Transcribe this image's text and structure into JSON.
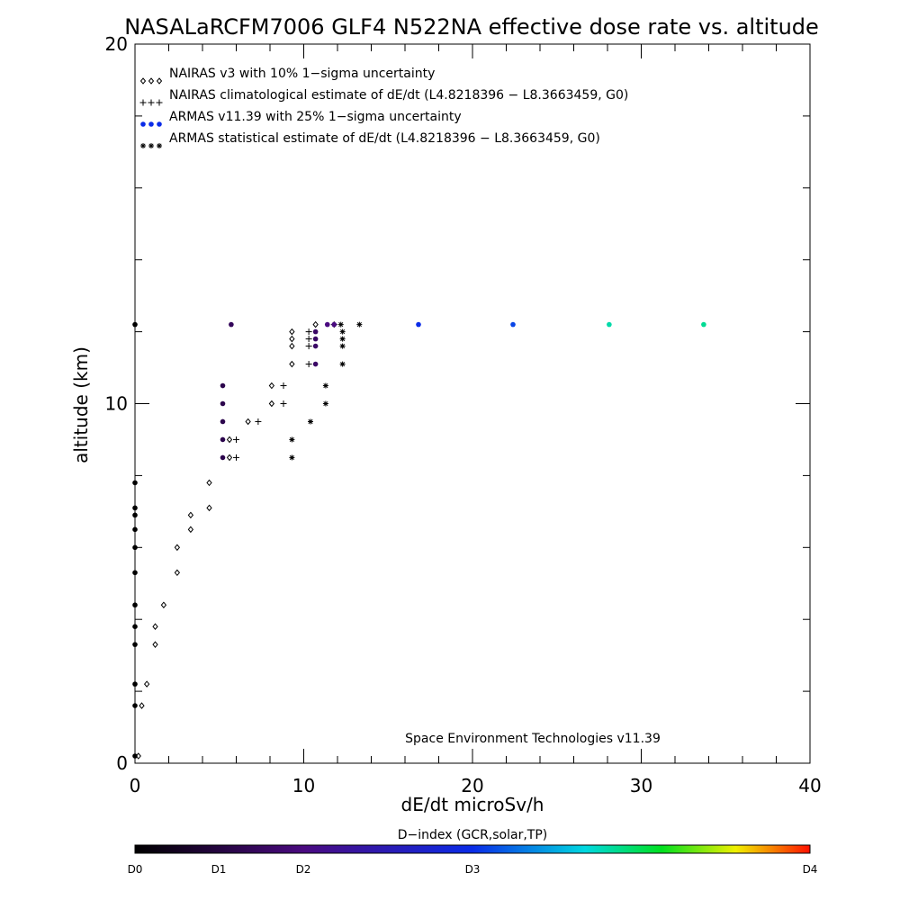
{
  "chart_data": {
    "type": "scatter",
    "title": "NASALaRCFM7006  GLF4 N522NA effective dose rate vs. altitude",
    "xlabel": "dE/dt microSv/h",
    "ylabel": "altitude (km)",
    "xlim": [
      0,
      40
    ],
    "ylim": [
      0,
      20
    ],
    "x_ticks": [
      "0",
      "10",
      "20",
      "30",
      "40"
    ],
    "y_ticks": [
      "0",
      "10",
      "20"
    ],
    "legend_position": "top-left",
    "credit": "Space Environment Technologies v11.39",
    "colorbar": {
      "title": "D−index (GCR,solar,TP)",
      "labels": [
        {
          "text": "D0",
          "value": 0
        },
        {
          "text": "D1",
          "value": 1
        },
        {
          "text": "D2",
          "value": 2
        },
        {
          "text": "D3",
          "value": 3
        },
        {
          "text": "D4",
          "value": 4
        }
      ]
    },
    "series": [
      {
        "name": "NAIRAS v3 with 10% 1−sigma uncertainty",
        "marker": "diamond",
        "color": "#000000",
        "points": [
          [
            0.2,
            0.2
          ],
          [
            0.4,
            1.6
          ],
          [
            0.7,
            2.2
          ],
          [
            1.2,
            3.3
          ],
          [
            1.2,
            3.8
          ],
          [
            1.7,
            4.4
          ],
          [
            2.5,
            5.3
          ],
          [
            2.5,
            6.0
          ],
          [
            3.3,
            6.5
          ],
          [
            3.3,
            6.9
          ],
          [
            4.4,
            7.1
          ],
          [
            4.4,
            7.8
          ],
          [
            5.6,
            8.5
          ],
          [
            5.6,
            9.0
          ],
          [
            6.7,
            9.5
          ],
          [
            8.1,
            10.0
          ],
          [
            8.1,
            10.5
          ],
          [
            9.3,
            11.1
          ],
          [
            9.3,
            11.6
          ],
          [
            9.3,
            11.8
          ],
          [
            9.3,
            12.0
          ],
          [
            10.7,
            12.2
          ]
        ]
      },
      {
        "name": "NAIRAS climatological estimate of dE/dt (L4.8218396 − L8.3663459, G0)",
        "marker": "plus",
        "color": "#000000",
        "points": [
          [
            6.0,
            8.5
          ],
          [
            6.0,
            9.0
          ],
          [
            7.3,
            9.5
          ],
          [
            8.8,
            10.0
          ],
          [
            8.8,
            10.5
          ],
          [
            10.3,
            11.1
          ],
          [
            10.3,
            11.6
          ],
          [
            10.3,
            11.8
          ],
          [
            10.3,
            12.0
          ],
          [
            11.8,
            12.2
          ]
        ]
      },
      {
        "name": "ARMAS v11.39 with 25% 1−sigma uncertainty",
        "marker": "dot",
        "color": "#0a2be8",
        "points": [
          {
            "x": 0.0,
            "y": 0.2,
            "d": 0.0
          },
          {
            "x": 0.0,
            "y": 1.6,
            "d": 0.0
          },
          {
            "x": 0.0,
            "y": 2.2,
            "d": 0.0
          },
          {
            "x": 0.0,
            "y": 3.3,
            "d": 0.0
          },
          {
            "x": 0.0,
            "y": 3.8,
            "d": 0.0
          },
          {
            "x": 0.0,
            "y": 4.4,
            "d": 0.0
          },
          {
            "x": 0.0,
            "y": 5.3,
            "d": 0.0
          },
          {
            "x": 0.0,
            "y": 6.0,
            "d": 0.0
          },
          {
            "x": 0.0,
            "y": 6.5,
            "d": 0.0
          },
          {
            "x": 0.0,
            "y": 6.9,
            "d": 0.0
          },
          {
            "x": 0.0,
            "y": 7.1,
            "d": 0.0
          },
          {
            "x": 0.0,
            "y": 7.8,
            "d": 0.0
          },
          {
            "x": 0.0,
            "y": 12.2,
            "d": 0.0
          },
          {
            "x": 5.2,
            "y": 8.5,
            "d": 0.6
          },
          {
            "x": 5.2,
            "y": 9.0,
            "d": 0.6
          },
          {
            "x": 5.2,
            "y": 9.5,
            "d": 0.6
          },
          {
            "x": 5.2,
            "y": 10.0,
            "d": 0.6
          },
          {
            "x": 5.2,
            "y": 10.5,
            "d": 0.6
          },
          {
            "x": 5.7,
            "y": 12.2,
            "d": 0.7
          },
          {
            "x": 10.7,
            "y": 11.1,
            "d": 0.8
          },
          {
            "x": 10.7,
            "y": 11.6,
            "d": 0.8
          },
          {
            "x": 10.7,
            "y": 11.8,
            "d": 0.8
          },
          {
            "x": 10.7,
            "y": 12.0,
            "d": 0.8
          },
          {
            "x": 11.4,
            "y": 12.2,
            "d": 1.0
          },
          {
            "x": 11.8,
            "y": 12.2,
            "d": 1.0
          },
          {
            "x": 16.8,
            "y": 12.2,
            "d": 2.0
          },
          {
            "x": 22.4,
            "y": 12.2,
            "d": 2.1
          },
          {
            "x": 28.1,
            "y": 12.2,
            "d": 2.8
          },
          {
            "x": 33.7,
            "y": 12.2,
            "d": 2.85
          }
        ]
      },
      {
        "name": "ARMAS statistical estimate of dE/dt (L4.8218396 − L8.3663459, G0)",
        "marker": "asterisk",
        "color": "#000000",
        "points": [
          [
            9.3,
            8.5
          ],
          [
            9.3,
            9.0
          ],
          [
            10.4,
            9.5
          ],
          [
            11.3,
            10.0
          ],
          [
            11.3,
            10.5
          ],
          [
            12.3,
            11.1
          ],
          [
            12.3,
            11.6
          ],
          [
            12.3,
            11.8
          ],
          [
            12.3,
            12.0
          ],
          [
            12.2,
            12.2
          ],
          [
            13.3,
            12.2
          ]
        ]
      }
    ]
  },
  "colors": {
    "colorbar": [
      "#000000",
      "#4a0a80",
      "#0a2be8",
      "#00d8e0",
      "#00e020",
      "#f0f000",
      "#ff1000"
    ]
  }
}
